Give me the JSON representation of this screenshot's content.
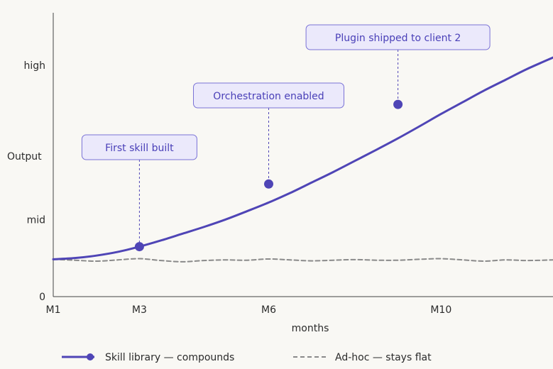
{
  "chart_data": {
    "type": "line",
    "xlabel": "months",
    "ylabel": "Output",
    "x_ticks": [
      {
        "label": "M1",
        "x": 1
      },
      {
        "label": "M3",
        "x": 3
      },
      {
        "label": "M6",
        "x": 6
      },
      {
        "label": "M10",
        "x": 10
      }
    ],
    "y_ticks": [
      {
        "label": "0",
        "y": 0
      },
      {
        "label": "mid",
        "y": 25
      },
      {
        "label": "high",
        "y": 75
      }
    ],
    "xlim": [
      1,
      12.6
    ],
    "ylim": [
      0,
      92
    ],
    "series": [
      {
        "name": "Skill library — compounds",
        "style": "solid",
        "color": "#4f45b6",
        "x": [
          1,
          1.5,
          2,
          2.5,
          3,
          3.5,
          4,
          4.5,
          5,
          5.5,
          6,
          6.5,
          7,
          7.5,
          8,
          8.5,
          9,
          9.5,
          10,
          10.5,
          11,
          11.5,
          12,
          12.6
        ],
        "y": [
          12.1,
          12.5,
          13.3,
          14.5,
          16.2,
          18.2,
          20.4,
          22.6,
          25.0,
          27.7,
          30.5,
          33.6,
          37.0,
          40.4,
          44.0,
          47.6,
          51.3,
          55.2,
          59.2,
          63.0,
          66.8,
          70.3,
          73.8,
          77.5
        ]
      },
      {
        "name": "Ad-hoc — stays flat",
        "style": "dashed",
        "color": "#8a8a8a",
        "x": [
          1,
          1.5,
          2,
          2.5,
          3,
          3.5,
          4,
          4.5,
          5,
          5.5,
          6,
          6.5,
          7,
          7.5,
          8,
          8.5,
          9,
          9.5,
          10,
          10.5,
          11,
          11.5,
          12,
          12.6
        ],
        "y": [
          12.1,
          11.8,
          11.5,
          11.9,
          12.3,
          11.7,
          11.3,
          11.7,
          11.9,
          11.8,
          12.2,
          11.9,
          11.6,
          11.8,
          12.0,
          11.8,
          11.8,
          12.1,
          12.3,
          11.9,
          11.5,
          11.9,
          11.7,
          11.9
        ]
      }
    ],
    "annotations": [
      {
        "text": "First skill built",
        "x": 3,
        "y": 16.2
      },
      {
        "text": "Orchestration enabled",
        "x": 6,
        "y": 36.5
      },
      {
        "text": "Plugin shipped to client 2",
        "x": 9,
        "y": 62.3
      }
    ],
    "legend": "bottom",
    "grid": false
  }
}
